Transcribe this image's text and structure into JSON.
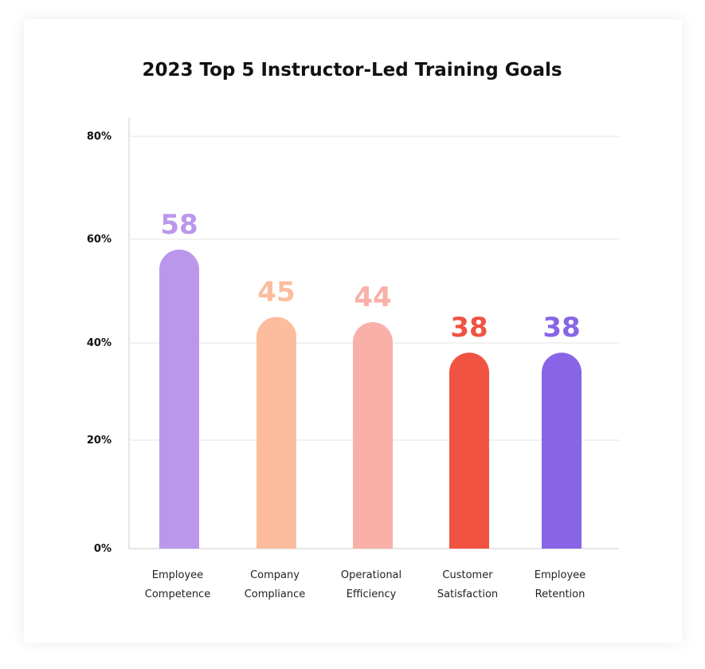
{
  "chart_data": {
    "type": "bar",
    "title": "2023 Top 5 Instructor-Led Training Goals",
    "categories": [
      [
        "Employee",
        "Competence"
      ],
      [
        "Company",
        "Compliance"
      ],
      [
        "Operational",
        "Efficiency"
      ],
      [
        "Customer",
        "Satisfaction"
      ],
      [
        "Employee",
        "Retention"
      ]
    ],
    "values": [
      58,
      45,
      44,
      38,
      38
    ],
    "data_labels": [
      "58",
      "45",
      "44",
      "38",
      "38"
    ],
    "colors": [
      "#bb97ec",
      "#fbbd9d",
      "#f8b0a8",
      "#f05342",
      "#8765e6"
    ],
    "label_colors": [
      "#bb97ec",
      "#fbbd9d",
      "#f8b0a8",
      "#f05342",
      "#8765e6"
    ],
    "yticks": [
      0,
      20,
      40,
      60,
      80
    ],
    "ytick_labels": [
      "0%",
      "20%",
      "40%",
      "60%",
      "80%"
    ],
    "ylim": [
      0,
      80
    ],
    "xlabel": "",
    "ylabel": "",
    "grid": true,
    "legend": "none"
  }
}
